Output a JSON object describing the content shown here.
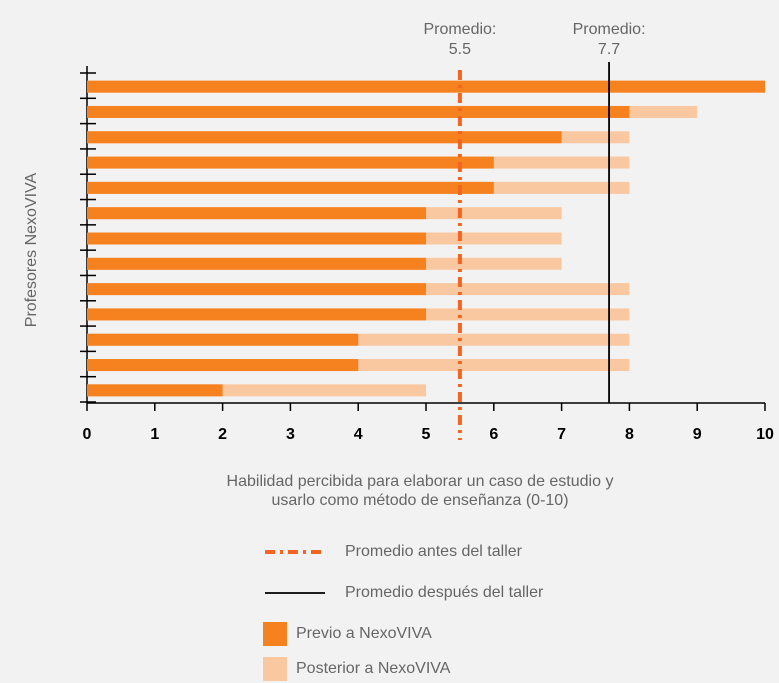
{
  "chart_data": {
    "type": "bar",
    "orientation": "horizontal",
    "overlap": true,
    "categories": [
      null,
      null,
      null,
      null,
      null,
      null,
      null,
      null,
      null,
      null,
      null,
      null,
      null
    ],
    "series": [
      {
        "name": "Previo a NexoVIVA",
        "color": "#f5821f",
        "values": [
          10,
          8,
          7,
          6,
          6,
          5,
          5,
          5,
          5,
          5,
          4,
          4,
          2
        ]
      },
      {
        "name": "Posterior a NexoVIVA",
        "color": "#f9c7a0",
        "values": [
          10,
          9,
          8,
          8,
          8,
          7,
          7,
          7,
          8,
          8,
          8,
          8,
          5
        ]
      }
    ],
    "xlim": [
      0,
      10
    ],
    "xticks": [
      0,
      1,
      2,
      3,
      4,
      5,
      6,
      7,
      8,
      9,
      10
    ],
    "x_label": [
      "Habilidad percibida para elaborar un caso de estudio y",
      "usarlo como método de enseñanza (0-10)"
    ],
    "y_label": "Profesores NexoVIVA",
    "reference_lines": [
      {
        "name": "Promedio antes del taller",
        "label": "Promedio:",
        "value": 5.5,
        "color": "#f26522",
        "style": "dashed"
      },
      {
        "name": "Promedio después del taller",
        "label": "Promedio:",
        "value": 7.7,
        "color": "#000000",
        "style": "solid"
      }
    ],
    "grid": false
  }
}
